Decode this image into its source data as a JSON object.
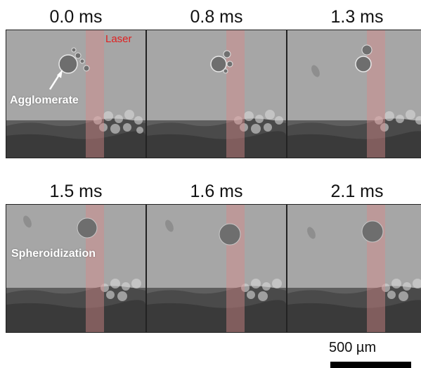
{
  "frames": [
    {
      "time": "0.0 ms"
    },
    {
      "time": "0.8 ms"
    },
    {
      "time": "1.3 ms"
    },
    {
      "time": "1.5 ms"
    },
    {
      "time": "1.6 ms"
    },
    {
      "time": "2.1 ms"
    }
  ],
  "annotations": {
    "laser": "Laser",
    "agglomerate": "Agglomerate",
    "spheroidization": "Spheroidization"
  },
  "scale_bar": {
    "label": "500 µm"
  },
  "colors": {
    "background_gray": "#a4a4a4",
    "laser_band": "#d88a8a",
    "laser_text": "#e02020",
    "annotation_text": "#ffffff"
  }
}
